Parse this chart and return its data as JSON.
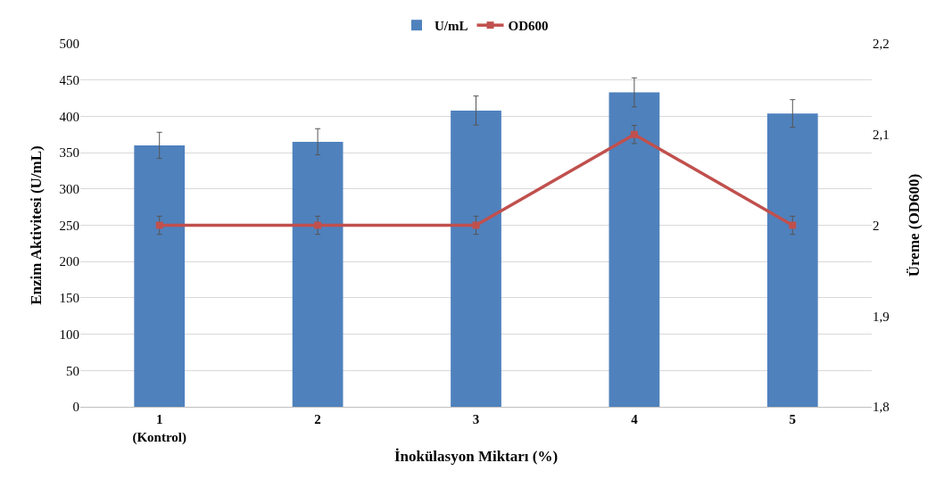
{
  "chart_data": {
    "type": "bar",
    "xlabel": "İnokülasyon Miktarı (%)",
    "ylabel": "Enzim Aktivitesi (U/mL)",
    "y2label": "Üreme (OD600)",
    "categories": [
      "1\n(Kontrol)",
      "2",
      "3",
      "4",
      "5"
    ],
    "series": [
      {
        "name": "U/mL",
        "color": "#4f81bd",
        "values": [
          360,
          365,
          408,
          433,
          404
        ],
        "errors": [
          18,
          18,
          20,
          20,
          19
        ]
      },
      {
        "name": "OD600",
        "type": "line",
        "axis": "y2",
        "color": "#c0504d",
        "marker": "square",
        "values": [
          2.0,
          2.0,
          2.0,
          2.1,
          2.0
        ],
        "errors": [
          0.01,
          0.01,
          0.01,
          0.01,
          0.01
        ]
      }
    ],
    "ylim": [
      0,
      500
    ],
    "yticks": [
      0,
      50,
      100,
      150,
      200,
      250,
      300,
      350,
      400,
      450,
      500
    ],
    "y2lim": [
      1.8,
      2.2
    ],
    "y2ticks": [
      {
        "value": 1.8,
        "label": "1,8"
      },
      {
        "value": 1.9,
        "label": "1,9"
      },
      2,
      {
        "value": 2.1,
        "label": "2,1"
      },
      {
        "value": 2.2,
        "label": "2,2"
      }
    ],
    "grid": "y",
    "legend": "top"
  }
}
